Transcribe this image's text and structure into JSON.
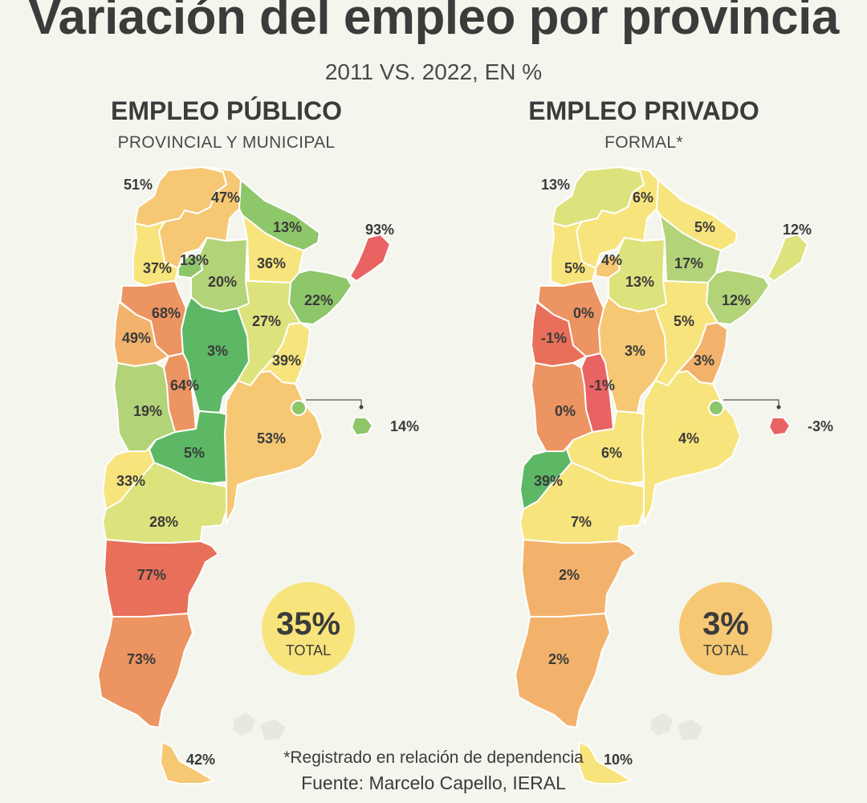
{
  "header": {
    "title": "Variación del empleo por provincia",
    "subtitle": "2011 VS. 2022, EN %"
  },
  "footer": {
    "note": "*Registrado en relación de dependencia",
    "source": "Fuente: Marcelo Capello, IERAL"
  },
  "colors": {
    "dark_green": "#5cb865",
    "green": "#8ec66a",
    "light_green": "#b3d378",
    "yellow_green": "#dde37c",
    "yellow": "#f7e47c",
    "light_orange": "#f6c874",
    "orange": "#f3b26c",
    "salmon": "#ec9462",
    "red": "#e8705a",
    "bright_red": "#e96363"
  },
  "chart_data": [
    {
      "type": "map",
      "title": "EMPLEO PÚBLICO",
      "subtitle": "PROVINCIAL Y MUNICIPAL",
      "total": {
        "value": "35%",
        "label": "TOTAL",
        "color": "#f7e47c"
      },
      "regions": [
        {
          "id": "jujuy",
          "value": "51%",
          "color": "#f6c874"
        },
        {
          "id": "salta",
          "value": "47%",
          "color": "#f6c874"
        },
        {
          "id": "formosa",
          "value": "13%",
          "color": "#8ec66a"
        },
        {
          "id": "misiones",
          "value": "93%",
          "color": "#e96363"
        },
        {
          "id": "catamarca",
          "value": "37%",
          "color": "#f7e47c"
        },
        {
          "id": "tucuman",
          "value": "13%",
          "color": "#8ec66a"
        },
        {
          "id": "santiago",
          "value": "20%",
          "color": "#b3d378"
        },
        {
          "id": "chaco",
          "value": "36%",
          "color": "#f7e47c"
        },
        {
          "id": "corrientes",
          "value": "22%",
          "color": "#8ec66a"
        },
        {
          "id": "larioja",
          "value": "68%",
          "color": "#ec9462"
        },
        {
          "id": "sanjuan",
          "value": "49%",
          "color": "#f3b26c"
        },
        {
          "id": "cordoba",
          "value": "3%",
          "color": "#5cb865"
        },
        {
          "id": "santafe",
          "value": "27%",
          "color": "#dde37c"
        },
        {
          "id": "entrerios",
          "value": "39%",
          "color": "#f7e47c"
        },
        {
          "id": "sanluis",
          "value": "64%",
          "color": "#ec9462"
        },
        {
          "id": "mendoza",
          "value": "19%",
          "color": "#b3d378"
        },
        {
          "id": "caba",
          "value": "14%",
          "color": "#8ec66a"
        },
        {
          "id": "buenosaires",
          "value": "53%",
          "color": "#f6c874"
        },
        {
          "id": "lapampa",
          "value": "5%",
          "color": "#5cb865"
        },
        {
          "id": "neuquen",
          "value": "33%",
          "color": "#f7e47c"
        },
        {
          "id": "rionegro",
          "value": "28%",
          "color": "#dde37c"
        },
        {
          "id": "chubut",
          "value": "77%",
          "color": "#e8705a"
        },
        {
          "id": "santacruz",
          "value": "73%",
          "color": "#ec9462"
        },
        {
          "id": "tierradelfuego",
          "value": "42%",
          "color": "#f6c874"
        }
      ]
    },
    {
      "type": "map",
      "title": "EMPLEO PRIVADO",
      "subtitle": "FORMAL*",
      "total": {
        "value": "3%",
        "label": "TOTAL",
        "color": "#f6c874"
      },
      "regions": [
        {
          "id": "jujuy",
          "value": "13%",
          "color": "#dde37c"
        },
        {
          "id": "salta",
          "value": "6%",
          "color": "#f7e47c"
        },
        {
          "id": "formosa",
          "value": "5%",
          "color": "#f7e47c"
        },
        {
          "id": "misiones",
          "value": "12%",
          "color": "#dde37c"
        },
        {
          "id": "catamarca",
          "value": "5%",
          "color": "#f7e47c"
        },
        {
          "id": "tucuman",
          "value": "4%",
          "color": "#f6c874"
        },
        {
          "id": "santiago",
          "value": "13%",
          "color": "#dde37c"
        },
        {
          "id": "chaco",
          "value": "17%",
          "color": "#b3d378"
        },
        {
          "id": "corrientes",
          "value": "12%",
          "color": "#b3d378"
        },
        {
          "id": "larioja",
          "value": "0%",
          "color": "#ec9462"
        },
        {
          "id": "sanjuan",
          "value": "-1%",
          "color": "#e8705a"
        },
        {
          "id": "cordoba",
          "value": "3%",
          "color": "#f6c874"
        },
        {
          "id": "santafe",
          "value": "5%",
          "color": "#f7e47c"
        },
        {
          "id": "entrerios",
          "value": "3%",
          "color": "#f3b26c"
        },
        {
          "id": "sanluis",
          "value": "-1%",
          "color": "#e96363"
        },
        {
          "id": "mendoza",
          "value": "0%",
          "color": "#ec9462"
        },
        {
          "id": "caba",
          "value": "-3%",
          "color": "#e96363"
        },
        {
          "id": "buenosaires",
          "value": "4%",
          "color": "#f7e47c"
        },
        {
          "id": "lapampa",
          "value": "6%",
          "color": "#f7e47c"
        },
        {
          "id": "neuquen",
          "value": "39%",
          "color": "#5cb865"
        },
        {
          "id": "rionegro",
          "value": "7%",
          "color": "#f7e47c"
        },
        {
          "id": "chubut",
          "value": "2%",
          "color": "#f3b26c"
        },
        {
          "id": "santacruz",
          "value": "2%",
          "color": "#f3b26c"
        },
        {
          "id": "tierradelfuego",
          "value": "10%",
          "color": "#f7e47c"
        }
      ]
    }
  ]
}
